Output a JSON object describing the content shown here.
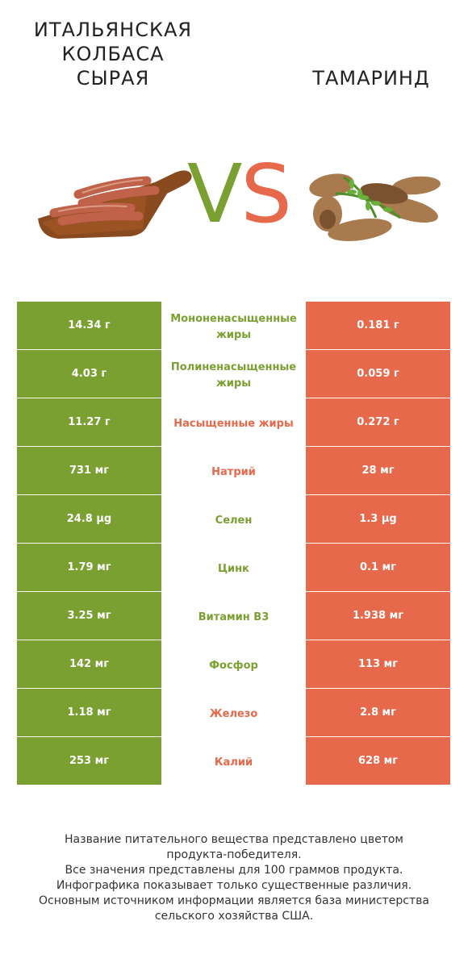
{
  "left_food": {
    "name": "ИТАЛЬЯНСКАЯ\nКОЛБАСА\nСЫРАЯ",
    "image": "sausage-on-board-image"
  },
  "right_food": {
    "name": "ТАМАРИНД",
    "image": "tamarind-image"
  },
  "vs": {
    "v": "V",
    "s": "S"
  },
  "colors": {
    "left": "#7aa032",
    "right": "#e5694a"
  },
  "rows": [
    {
      "left": "14.34 г",
      "label": "Мононенасыщенные жиры",
      "right": "0.181 г",
      "winner": "left"
    },
    {
      "left": "4.03 г",
      "label": "Полиненасыщенные жиры",
      "right": "0.059 г",
      "winner": "left"
    },
    {
      "left": "11.27 г",
      "label": "Насыщенные жиры",
      "right": "0.272 г",
      "winner": "right"
    },
    {
      "left": "731 мг",
      "label": "Натрий",
      "right": "28 мг",
      "winner": "right"
    },
    {
      "left": "24.8 µg",
      "label": "Селен",
      "right": "1.3 µg",
      "winner": "left"
    },
    {
      "left": "1.79 мг",
      "label": "Цинк",
      "right": "0.1 мг",
      "winner": "left"
    },
    {
      "left": "3.25 мг",
      "label": "Витамин B3",
      "right": "1.938 мг",
      "winner": "left"
    },
    {
      "left": "142 мг",
      "label": "Фосфор",
      "right": "113 мг",
      "winner": "left"
    },
    {
      "left": "1.18 мг",
      "label": "Железо",
      "right": "2.8 мг",
      "winner": "right"
    },
    {
      "left": "253 мг",
      "label": "Калий",
      "right": "628 мг",
      "winner": "right"
    }
  ],
  "footer": [
    "Название питательного вещества представлено цветом",
    "продукта-победителя.",
    "Все значения представлены для 100 граммов продукта.",
    "Инфографика показывает только существенные различия.",
    "Основным источником информации является база министерства",
    "сельского хозяйства США."
  ]
}
